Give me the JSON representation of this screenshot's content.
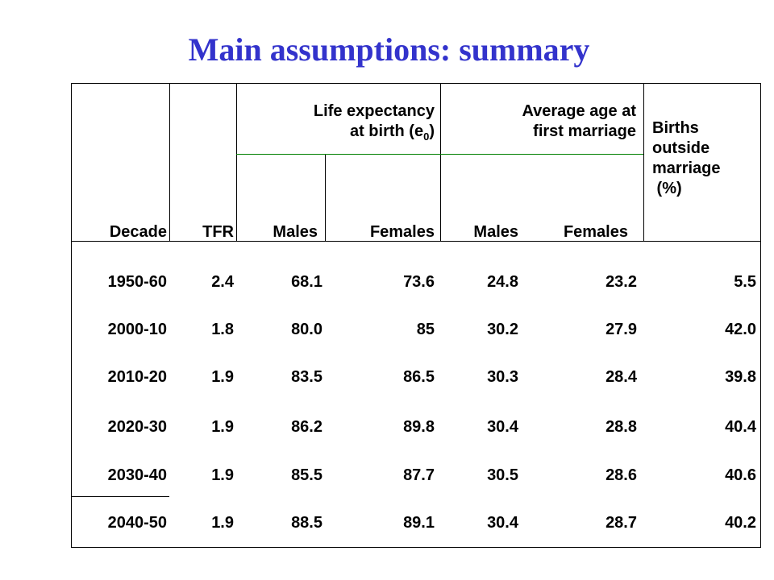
{
  "title": "Main assumptions: summary",
  "headers": {
    "decade": "Decade",
    "tfr": "TFR",
    "life_expectancy_line1": "Life expectancy",
    "life_expectancy_line2": "at birth (e",
    "life_expectancy_sub": "0",
    "life_expectancy_close": ")",
    "age_marriage_line1": "Average age at",
    "age_marriage_line2": "first marriage",
    "births_line1": "Births",
    "births_line2": "outside",
    "births_line3": "marriage",
    "births_line4": " (%)",
    "males_1": "Males",
    "females_1": "Females",
    "males_2": "Males",
    "females_2": "Females"
  },
  "rows": [
    {
      "decade": "1950-60",
      "tfr": "2.4",
      "le_males": "68.1",
      "le_females": "73.6",
      "am_males": "24.8",
      "am_females": "23.2",
      "births": "5.5"
    },
    {
      "decade": "2000-10",
      "tfr": "1.8",
      "le_males": "80.0",
      "le_females": "85",
      "am_males": "30.2",
      "am_females": "27.9",
      "births": "42.0"
    },
    {
      "decade": "2010-20",
      "tfr": "1.9",
      "le_males": "83.5",
      "le_females": "86.5",
      "am_males": "30.3",
      "am_females": "28.4",
      "births": "39.8"
    },
    {
      "decade": "2020-30",
      "tfr": "1.9",
      "le_males": "86.2",
      "le_females": "89.8",
      "am_males": "30.4",
      "am_females": "28.8",
      "births": "40.4"
    },
    {
      "decade": "2030-40",
      "tfr": "1.9",
      "le_males": "85.5",
      "le_females": "87.7",
      "am_males": "30.5",
      "am_females": "28.6",
      "births": "40.6"
    },
    {
      "decade": "2040-50",
      "tfr": "1.9",
      "le_males": "88.5",
      "le_females": "89.1",
      "am_males": "30.4",
      "am_females": "28.7",
      "births": "40.2"
    }
  ],
  "colors": {
    "title": "#3333cc",
    "subheader_rule": "#008000",
    "text": "#000000"
  }
}
